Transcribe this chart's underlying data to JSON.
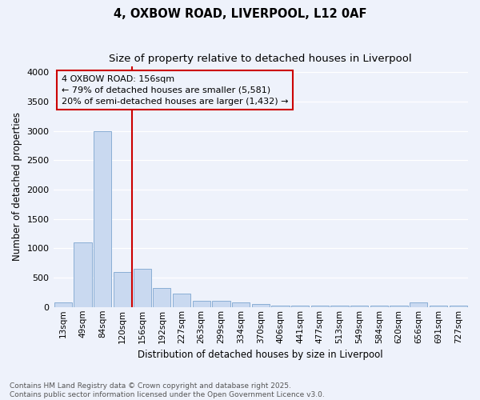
{
  "title": "4, OXBOW ROAD, LIVERPOOL, L12 0AF",
  "subtitle": "Size of property relative to detached houses in Liverpool",
  "xlabel": "Distribution of detached houses by size in Liverpool",
  "ylabel": "Number of detached properties",
  "categories": [
    "13sqm",
    "49sqm",
    "84sqm",
    "120sqm",
    "156sqm",
    "192sqm",
    "227sqm",
    "263sqm",
    "299sqm",
    "334sqm",
    "370sqm",
    "406sqm",
    "441sqm",
    "477sqm",
    "513sqm",
    "549sqm",
    "584sqm",
    "620sqm",
    "656sqm",
    "691sqm",
    "727sqm"
  ],
  "values": [
    75,
    1100,
    3000,
    600,
    650,
    325,
    225,
    100,
    100,
    75,
    50,
    25,
    25,
    25,
    25,
    25,
    25,
    25,
    75,
    25,
    25
  ],
  "bar_color": "#c9d9f0",
  "bar_edge_color": "#8aaed4",
  "bar_edge_width": 0.7,
  "red_line_x": 3.5,
  "red_line_color": "#cc0000",
  "annotation_box_color": "#cc0000",
  "annotation_text_line1": "4 OXBOW ROAD: 156sqm",
  "annotation_text_line2": "← 79% of detached houses are smaller (5,581)",
  "annotation_text_line3": "20% of semi-detached houses are larger (1,432) →",
  "ylim": [
    0,
    4100
  ],
  "yticks": [
    0,
    500,
    1000,
    1500,
    2000,
    2500,
    3000,
    3500,
    4000
  ],
  "background_color": "#eef2fb",
  "grid_color": "#ffffff",
  "title_fontsize": 10.5,
  "subtitle_fontsize": 9.5,
  "annotation_fontsize": 8,
  "xlabel_fontsize": 8.5,
  "ylabel_fontsize": 8.5,
  "tick_fontsize": 7.5,
  "ytick_fontsize": 8,
  "footer_line1": "Contains HM Land Registry data © Crown copyright and database right 2025.",
  "footer_line2": "Contains public sector information licensed under the Open Government Licence v3.0.",
  "footer_fontsize": 6.5
}
